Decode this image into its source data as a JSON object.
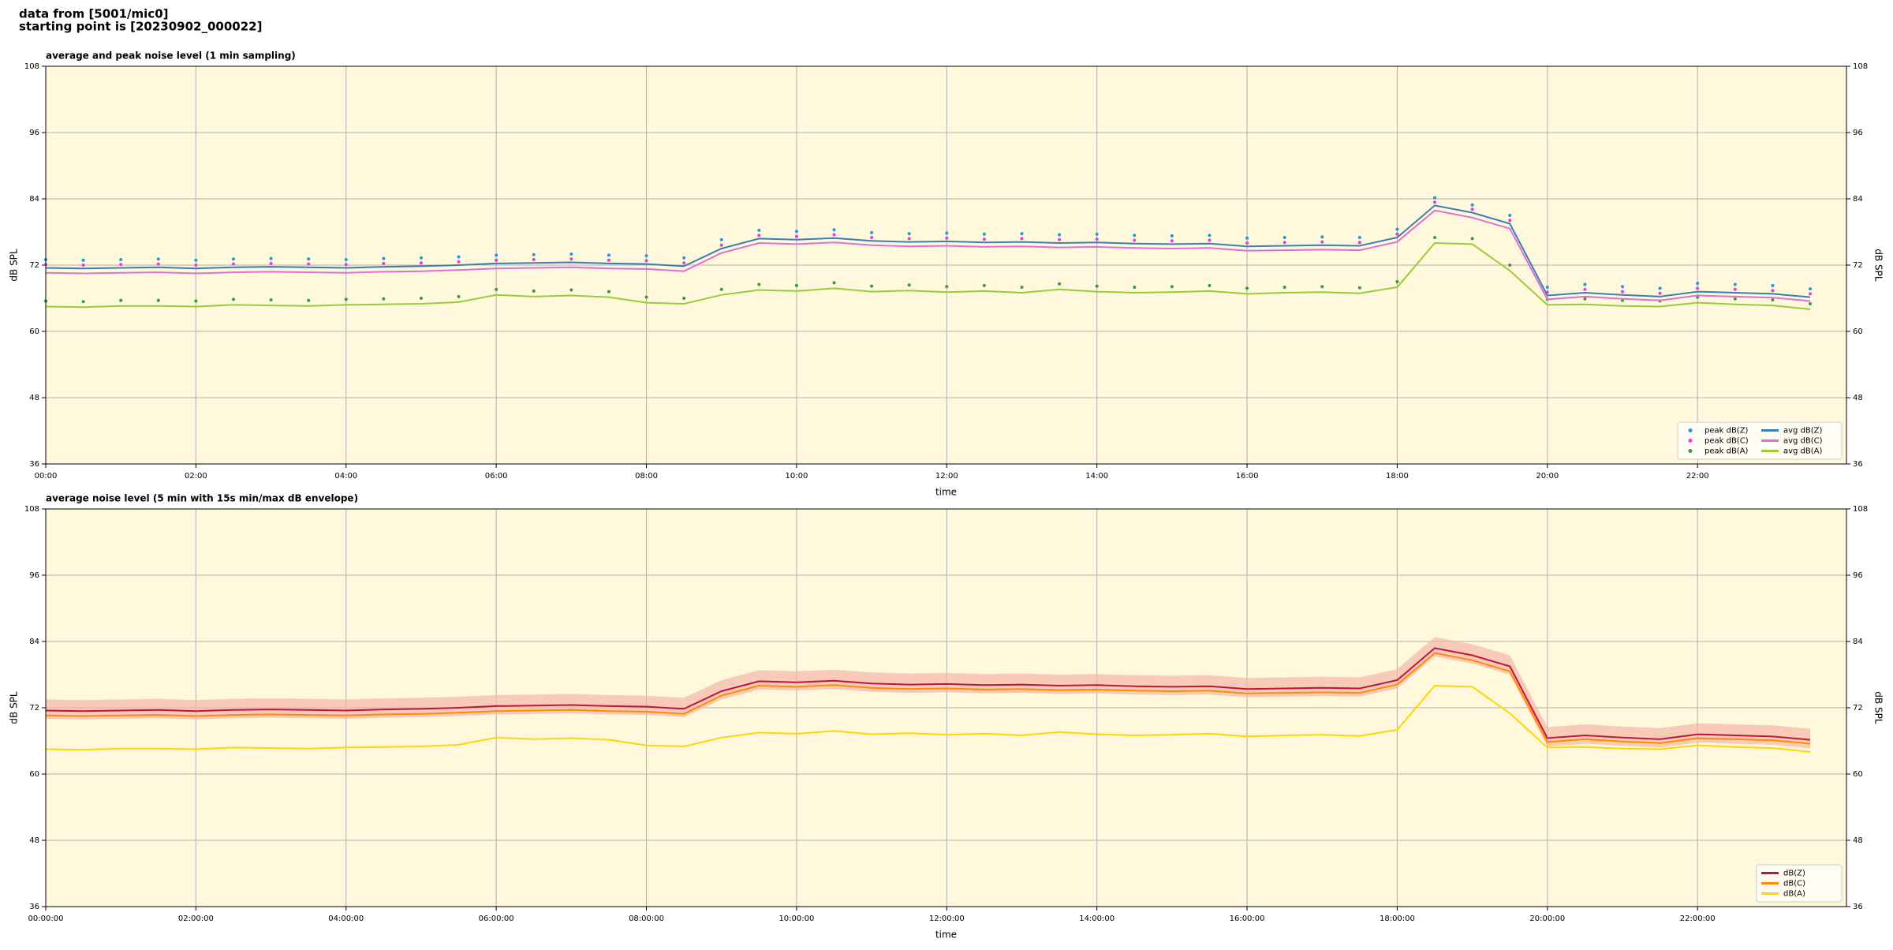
{
  "header": {
    "line1": "data from [5001/mic0]",
    "line2": "starting point is [20230902_000022]"
  },
  "chart_data": [
    {
      "type": "line",
      "title": "average and peak noise level (1 min sampling)",
      "xlabel": "time",
      "ylabel": "dB SPL",
      "x": [
        "00:00",
        "00:30",
        "01:00",
        "01:30",
        "02:00",
        "02:30",
        "03:00",
        "03:30",
        "04:00",
        "04:30",
        "05:00",
        "05:30",
        "06:00",
        "06:30",
        "07:00",
        "07:30",
        "08:00",
        "08:30",
        "09:00",
        "09:30",
        "10:00",
        "10:30",
        "11:00",
        "11:30",
        "12:00",
        "12:30",
        "13:00",
        "13:30",
        "14:00",
        "14:30",
        "15:00",
        "15:30",
        "16:00",
        "16:30",
        "17:00",
        "17:30",
        "18:00",
        "18:30",
        "19:00",
        "19:30",
        "20:00",
        "20:30",
        "21:00",
        "21:30",
        "22:00",
        "22:30",
        "23:00",
        "23:30"
      ],
      "xlim": [
        "00:00",
        "23:59"
      ],
      "xticks": [
        "00:00",
        "02:00",
        "04:00",
        "06:00",
        "08:00",
        "10:00",
        "12:00",
        "14:00",
        "16:00",
        "18:00",
        "20:00",
        "22:00"
      ],
      "ylim": [
        36,
        108
      ],
      "yticks": [
        36,
        48,
        60,
        72,
        84,
        96,
        108
      ],
      "grid": true,
      "legend": "lower right",
      "legend_columns": 2,
      "series": [
        {
          "name": "peak dB(Z)",
          "type": "scatter",
          "color": "#1f9bd9",
          "values": [
            73.0,
            72.9,
            73.0,
            73.1,
            72.9,
            73.1,
            73.2,
            73.1,
            73.0,
            73.2,
            73.3,
            73.5,
            73.8,
            73.9,
            74.0,
            73.8,
            73.7,
            73.3,
            76.6,
            78.3,
            78.1,
            78.4,
            77.9,
            77.7,
            77.8,
            77.6,
            77.7,
            77.5,
            77.6,
            77.4,
            77.3,
            77.4,
            76.9,
            77.0,
            77.1,
            77.0,
            78.5,
            84.2,
            82.9,
            81.0,
            68.0,
            68.5,
            68.1,
            67.8,
            68.7,
            68.5,
            68.3,
            67.7
          ]
        },
        {
          "name": "peak dB(C)",
          "type": "scatter",
          "color": "#e040e0",
          "values": [
            72.1,
            72.0,
            72.1,
            72.2,
            72.0,
            72.2,
            72.3,
            72.2,
            72.1,
            72.3,
            72.4,
            72.6,
            72.9,
            73.0,
            73.1,
            72.9,
            72.8,
            72.4,
            75.6,
            77.4,
            77.2,
            77.5,
            77.0,
            76.8,
            76.9,
            76.7,
            76.8,
            76.6,
            76.7,
            76.5,
            76.4,
            76.5,
            76.0,
            76.1,
            76.2,
            76.1,
            77.6,
            83.4,
            82.1,
            80.1,
            67.1,
            67.6,
            67.2,
            66.9,
            67.8,
            67.6,
            67.4,
            66.8
          ]
        },
        {
          "name": "peak dB(A)",
          "type": "scatter",
          "color": "#3a9a3a",
          "values": [
            65.5,
            65.4,
            65.6,
            65.6,
            65.5,
            65.8,
            65.7,
            65.6,
            65.8,
            65.9,
            66.0,
            66.3,
            67.6,
            67.3,
            67.5,
            67.2,
            66.2,
            66.0,
            67.6,
            68.5,
            68.3,
            68.8,
            68.2,
            68.4,
            68.1,
            68.3,
            68.0,
            68.6,
            68.2,
            68.0,
            68.1,
            68.3,
            67.8,
            68.0,
            68.1,
            67.9,
            69.0,
            77.0,
            76.8,
            72.0,
            65.8,
            65.9,
            65.6,
            65.5,
            66.2,
            65.9,
            65.7,
            65.0
          ]
        },
        {
          "name": "avg dB(Z)",
          "type": "line",
          "color": "#3a7fb0",
          "values": [
            71.5,
            71.4,
            71.5,
            71.6,
            71.4,
            71.6,
            71.7,
            71.6,
            71.5,
            71.7,
            71.8,
            72.0,
            72.3,
            72.4,
            72.5,
            72.3,
            72.2,
            71.8,
            75.0,
            76.8,
            76.6,
            76.9,
            76.4,
            76.2,
            76.3,
            76.1,
            76.2,
            76.0,
            76.1,
            75.9,
            75.8,
            75.9,
            75.4,
            75.5,
            75.6,
            75.5,
            77.0,
            82.8,
            81.5,
            79.5,
            66.5,
            67.0,
            66.6,
            66.3,
            67.2,
            67.0,
            66.8,
            66.2
          ]
        },
        {
          "name": "avg dB(C)",
          "type": "line",
          "color": "#e070d0",
          "values": [
            70.6,
            70.5,
            70.6,
            70.7,
            70.5,
            70.7,
            70.8,
            70.7,
            70.6,
            70.8,
            70.9,
            71.1,
            71.4,
            71.5,
            71.6,
            71.4,
            71.3,
            70.9,
            74.2,
            76.0,
            75.8,
            76.1,
            75.6,
            75.4,
            75.5,
            75.3,
            75.4,
            75.2,
            75.3,
            75.1,
            75.0,
            75.1,
            74.6,
            74.7,
            74.8,
            74.7,
            76.2,
            81.9,
            80.6,
            78.6,
            65.8,
            66.3,
            65.9,
            65.6,
            66.5,
            66.3,
            66.1,
            65.5
          ]
        },
        {
          "name": "avg dB(A)",
          "type": "line",
          "color": "#9acd32",
          "values": [
            64.5,
            64.4,
            64.6,
            64.6,
            64.5,
            64.8,
            64.7,
            64.6,
            64.8,
            64.9,
            65.0,
            65.3,
            66.6,
            66.3,
            66.5,
            66.2,
            65.2,
            65.0,
            66.6,
            67.5,
            67.3,
            67.8,
            67.2,
            67.4,
            67.1,
            67.3,
            67.0,
            67.6,
            67.2,
            67.0,
            67.1,
            67.3,
            66.8,
            67.0,
            67.1,
            66.9,
            68.0,
            76.0,
            75.8,
            71.0,
            64.8,
            64.9,
            64.6,
            64.5,
            65.2,
            64.9,
            64.7,
            64.0
          ]
        }
      ]
    },
    {
      "type": "line",
      "title": "average noise level (5 min with 15s min/max dB envelope)",
      "xlabel": "time",
      "ylabel": "dB SPL",
      "x": [
        "00:00:00",
        "00:30:00",
        "01:00:00",
        "01:30:00",
        "02:00:00",
        "02:30:00",
        "03:00:00",
        "03:30:00",
        "04:00:00",
        "04:30:00",
        "05:00:00",
        "05:30:00",
        "06:00:00",
        "06:30:00",
        "07:00:00",
        "07:30:00",
        "08:00:00",
        "08:30:00",
        "09:00:00",
        "09:30:00",
        "10:00:00",
        "10:30:00",
        "11:00:00",
        "11:30:00",
        "12:00:00",
        "12:30:00",
        "13:00:00",
        "13:30:00",
        "14:00:00",
        "14:30:00",
        "15:00:00",
        "15:30:00",
        "16:00:00",
        "16:30:00",
        "17:00:00",
        "17:30:00",
        "18:00:00",
        "18:30:00",
        "19:00:00",
        "19:30:00",
        "20:00:00",
        "20:30:00",
        "21:00:00",
        "21:30:00",
        "22:00:00",
        "22:30:00",
        "23:00:00",
        "23:30:00"
      ],
      "xlim": [
        "00:00:00",
        "23:59:00"
      ],
      "xticks": [
        "00:00:00",
        "02:00:00",
        "04:00:00",
        "06:00:00",
        "08:00:00",
        "10:00:00",
        "12:00:00",
        "14:00:00",
        "16:00:00",
        "18:00:00",
        "20:00:00",
        "22:00:00"
      ],
      "ylim": [
        36,
        108
      ],
      "yticks": [
        36,
        48,
        60,
        72,
        84,
        96,
        108
      ],
      "grid": true,
      "legend": "lower right",
      "legend_columns": 1,
      "series": [
        {
          "name": "dB(Z)",
          "type": "line",
          "color": "#c0143c",
          "envelope_color": "#f4b8a8",
          "values": [
            71.5,
            71.4,
            71.5,
            71.6,
            71.4,
            71.6,
            71.7,
            71.6,
            71.5,
            71.7,
            71.8,
            72.0,
            72.3,
            72.4,
            72.5,
            72.3,
            72.2,
            71.8,
            75.0,
            76.8,
            76.6,
            76.9,
            76.4,
            76.2,
            76.3,
            76.1,
            76.2,
            76.0,
            76.1,
            75.9,
            75.8,
            75.9,
            75.4,
            75.5,
            75.6,
            75.5,
            77.0,
            82.8,
            81.5,
            79.5,
            66.5,
            67.0,
            66.6,
            66.3,
            67.2,
            67.0,
            66.8,
            66.2
          ],
          "min": [
            70.0,
            69.9,
            70.0,
            70.1,
            69.9,
            70.1,
            70.2,
            70.1,
            70.0,
            70.2,
            70.3,
            70.5,
            70.8,
            70.9,
            71.0,
            70.8,
            70.7,
            70.3,
            73.5,
            75.3,
            75.1,
            75.4,
            74.9,
            74.7,
            74.8,
            74.6,
            74.7,
            74.5,
            74.6,
            74.4,
            74.3,
            74.4,
            73.9,
            74.0,
            74.1,
            74.0,
            75.5,
            81.3,
            80.0,
            78.0,
            65.0,
            65.5,
            65.1,
            64.8,
            65.7,
            65.5,
            65.3,
            64.7
          ],
          "max": [
            73.5,
            73.4,
            73.5,
            73.6,
            73.4,
            73.6,
            73.7,
            73.6,
            73.5,
            73.7,
            73.8,
            74.0,
            74.3,
            74.4,
            74.5,
            74.3,
            74.2,
            73.8,
            77.0,
            78.8,
            78.6,
            78.9,
            78.4,
            78.2,
            78.3,
            78.1,
            78.2,
            78.0,
            78.1,
            77.9,
            77.8,
            77.9,
            77.4,
            77.5,
            77.6,
            77.5,
            79.0,
            84.8,
            83.5,
            81.5,
            68.5,
            69.0,
            68.6,
            68.3,
            69.2,
            69.0,
            68.8,
            68.2
          ]
        },
        {
          "name": "dB(C)",
          "type": "line",
          "color": "#ff8c00",
          "values": [
            70.6,
            70.5,
            70.6,
            70.7,
            70.5,
            70.7,
            70.8,
            70.7,
            70.6,
            70.8,
            70.9,
            71.1,
            71.4,
            71.5,
            71.6,
            71.4,
            71.3,
            70.9,
            74.2,
            76.0,
            75.8,
            76.1,
            75.6,
            75.4,
            75.5,
            75.3,
            75.4,
            75.2,
            75.3,
            75.1,
            75.0,
            75.1,
            74.6,
            74.7,
            74.8,
            74.7,
            76.2,
            81.9,
            80.6,
            78.6,
            65.8,
            66.3,
            65.9,
            65.6,
            66.5,
            66.3,
            66.1,
            65.5
          ]
        },
        {
          "name": "dB(A)",
          "type": "line",
          "color": "#ffd700",
          "values": [
            64.5,
            64.4,
            64.6,
            64.6,
            64.5,
            64.8,
            64.7,
            64.6,
            64.8,
            64.9,
            65.0,
            65.3,
            66.6,
            66.3,
            66.5,
            66.2,
            65.2,
            65.0,
            66.6,
            67.5,
            67.3,
            67.8,
            67.2,
            67.4,
            67.1,
            67.3,
            67.0,
            67.6,
            67.2,
            67.0,
            67.1,
            67.3,
            66.8,
            67.0,
            67.1,
            66.9,
            68.0,
            76.0,
            75.8,
            71.0,
            64.8,
            64.9,
            64.6,
            64.5,
            65.2,
            64.9,
            64.7,
            64.0
          ]
        }
      ]
    }
  ]
}
